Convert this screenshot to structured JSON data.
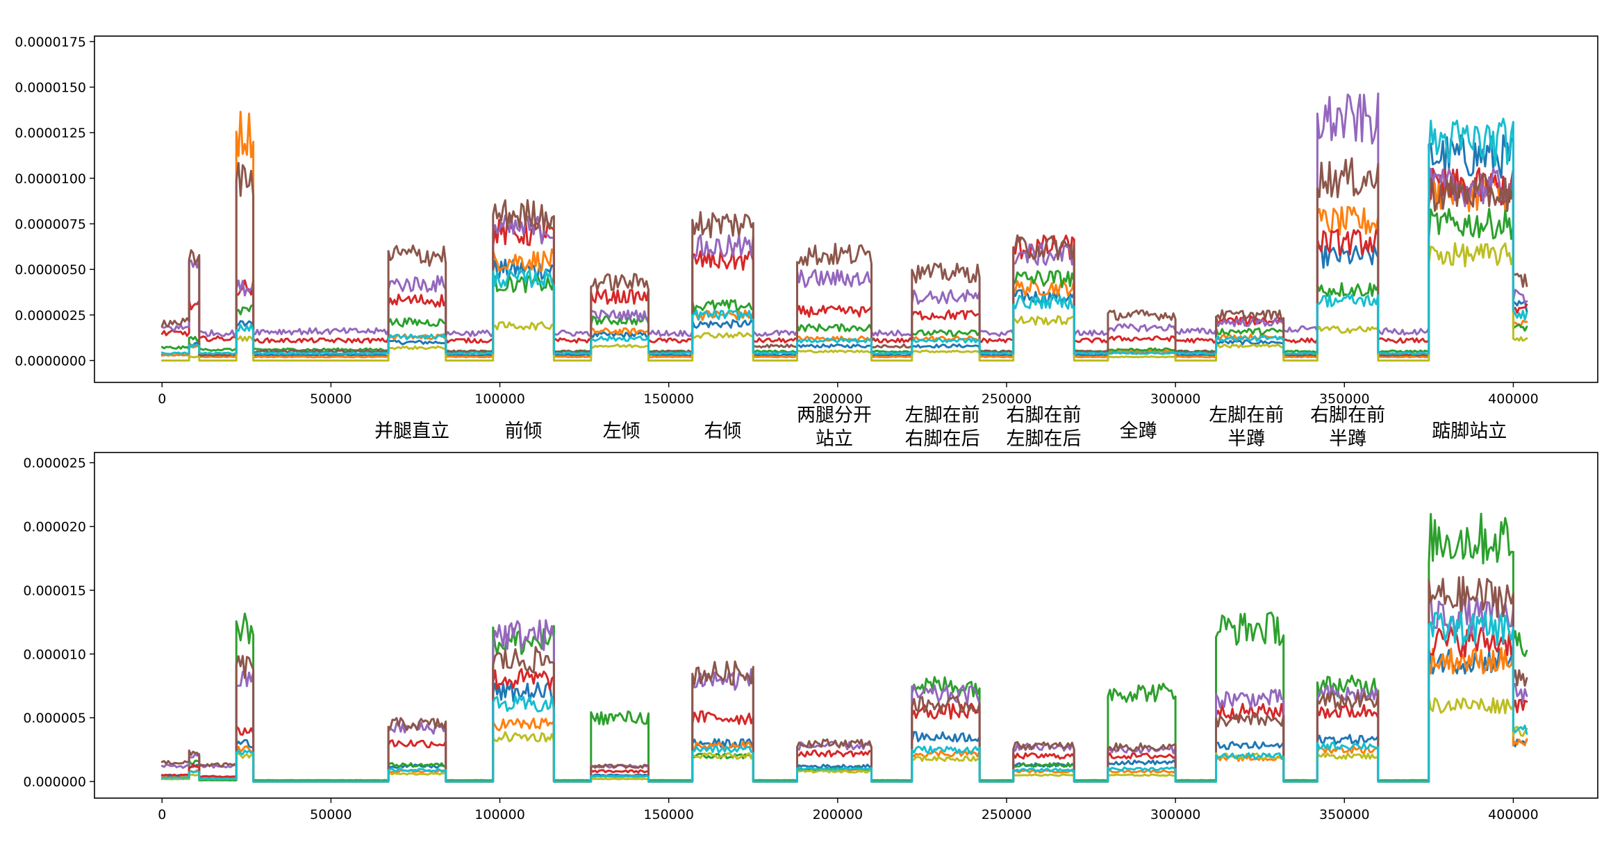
{
  "colors": {
    "blue": "#1f77b4",
    "orange": "#ff7f0e",
    "green": "#2ca02c",
    "red": "#d62728",
    "purple": "#9467bd",
    "brown": "#8c564b",
    "olive": "#bcbd22",
    "cyan": "#17becf"
  },
  "chart_data": [
    {
      "type": "line",
      "grid": false,
      "xlim": [
        -20000,
        425000
      ],
      "ylim": [
        -1.2e-06,
        1.78e-05
      ],
      "xticks": [
        0,
        50000,
        100000,
        150000,
        200000,
        250000,
        300000,
        350000,
        400000
      ],
      "xtick_labels": [
        "0",
        "50000",
        "100000",
        "150000",
        "200000",
        "250000",
        "300000",
        "350000",
        "400000"
      ],
      "yticks": [
        0,
        2.5e-06,
        5e-06,
        7.5e-06,
        1e-05,
        1.25e-05,
        1.5e-05,
        1.75e-05
      ],
      "ytick_labels": [
        "0.0000000",
        "0.0000025",
        "0.0000050",
        "0.0000075",
        "0.0000100",
        "0.0000125",
        "0.0000150",
        "0.0000175"
      ],
      "segments_x": [
        [
          0,
          8000
        ],
        [
          8000,
          11000
        ],
        [
          11000,
          22000
        ],
        [
          22000,
          27000
        ],
        [
          27000,
          67000
        ],
        [
          67000,
          84000
        ],
        [
          84000,
          98000
        ],
        [
          98000,
          116000
        ],
        [
          116000,
          127000
        ],
        [
          127000,
          144000
        ],
        [
          144000,
          157000
        ],
        [
          157000,
          175000
        ],
        [
          175000,
          188000
        ],
        [
          188000,
          210000
        ],
        [
          210000,
          222000
        ],
        [
          222000,
          242000
        ],
        [
          242000,
          252000
        ],
        [
          252000,
          270000
        ],
        [
          270000,
          280000
        ],
        [
          280000,
          300000
        ],
        [
          300000,
          312000
        ],
        [
          312000,
          332000
        ],
        [
          332000,
          342000
        ],
        [
          342000,
          360000
        ],
        [
          360000,
          375000
        ],
        [
          375000,
          400000
        ],
        [
          400000,
          404000
        ]
      ],
      "series": [
        {
          "color_key": "blue",
          "values": [
            3e-07,
            9e-07,
            3e-07,
            2e-06,
            3e-07,
            1e-06,
            3e-07,
            5e-06,
            3e-07,
            1.4e-06,
            3e-07,
            2e-06,
            3e-07,
            8e-07,
            3e-07,
            8e-07,
            3e-07,
            3.5e-06,
            3e-07,
            5e-07,
            3e-07,
            1e-06,
            3e-07,
            5.7e-06,
            3e-07,
            1.12e-05,
            3e-06
          ]
        },
        {
          "color_key": "orange",
          "values": [
            3e-07,
            8e-07,
            2e-07,
            1.25e-05,
            2e-07,
            1.3e-06,
            2e-07,
            5.5e-06,
            2e-07,
            1.6e-06,
            2e-07,
            2.5e-06,
            2e-07,
            1.2e-06,
            2e-07,
            1.2e-06,
            2e-07,
            4e-06,
            2e-07,
            5e-07,
            2e-07,
            1.3e-06,
            2e-07,
            7.6e-06,
            2e-07,
            9.2e-06,
            2e-06
          ]
        },
        {
          "color_key": "green",
          "values": [
            7e-07,
            1.2e-06,
            6e-07,
            2.8e-06,
            6e-07,
            2.1e-06,
            5e-07,
            4.2e-06,
            5e-07,
            2.2e-06,
            5e-07,
            3e-06,
            5e-07,
            1.8e-06,
            5e-07,
            1.5e-06,
            5e-07,
            4.5e-06,
            5e-07,
            6e-07,
            5e-07,
            1.6e-06,
            5e-07,
            3.9e-06,
            5e-07,
            7.5e-06,
            1.8e-06
          ]
        },
        {
          "color_key": "red",
          "values": [
            1.5e-06,
            3e-06,
            1.2e-06,
            4e-06,
            1.1e-06,
            3.3e-06,
            1.1e-06,
            7e-06,
            1.1e-06,
            3.5e-06,
            1.1e-06,
            5.5e-06,
            1.1e-06,
            2.7e-06,
            1.1e-06,
            2.5e-06,
            1.1e-06,
            6.2e-06,
            1.1e-06,
            1.2e-06,
            1.1e-06,
            2.2e-06,
            1.1e-06,
            6.5e-06,
            1.1e-06,
            9.5e-06,
            2.8e-06
          ]
        },
        {
          "color_key": "purple",
          "values": [
            1.8e-06,
            5.5e-06,
            1.5e-06,
            4e-06,
            1.6e-06,
            4.2e-06,
            1.5e-06,
            7.2e-06,
            1.5e-06,
            2.5e-06,
            1.5e-06,
            6.2e-06,
            1.5e-06,
            4.5e-06,
            1.5e-06,
            3.5e-06,
            1.5e-06,
            5.8e-06,
            1.5e-06,
            1.8e-06,
            1.6e-06,
            2.1e-06,
            1.7e-06,
            1.32e-05,
            1.6e-06,
            9.5e-06,
            3.5e-06
          ]
        },
        {
          "color_key": "brown",
          "values": [
            2.1e-06,
            5.5e-06,
            3e-07,
            1e-05,
            5e-07,
            5.8e-06,
            5e-07,
            8e-06,
            5e-07,
            4.3e-06,
            5e-07,
            7.5e-06,
            8e-07,
            5.8e-06,
            8e-07,
            4.8e-06,
            5e-07,
            6.2e-06,
            5e-07,
            2.5e-06,
            5e-07,
            2.5e-06,
            3e-07,
            1e-05,
            3e-07,
            9.2e-06,
            4.4e-06
          ]
        },
        {
          "color_key": "olive",
          "values": [
            0,
            2e-07,
            0,
            1.2e-06,
            0,
            7e-07,
            0,
            1.9e-06,
            0,
            8e-07,
            0,
            1.4e-06,
            0,
            5e-07,
            0,
            5e-07,
            0,
            2.2e-06,
            0,
            2e-07,
            0,
            8e-07,
            0,
            1.7e-06,
            0,
            5.8e-06,
            1.2e-06
          ]
        },
        {
          "color_key": "cyan",
          "values": [
            4e-07,
            8e-07,
            4e-07,
            1.8e-06,
            4e-07,
            1.3e-06,
            4e-07,
            4.5e-06,
            4e-07,
            1.2e-06,
            4e-07,
            2.5e-06,
            4e-07,
            1.1e-06,
            4e-07,
            1.1e-06,
            4e-07,
            3.2e-06,
            4e-07,
            4e-07,
            4e-07,
            1.2e-06,
            4e-07,
            3.3e-06,
            4e-07,
            1.2e-05,
            2.5e-06
          ]
        }
      ]
    },
    {
      "type": "line",
      "grid": false,
      "xlim": [
        -20000,
        425000
      ],
      "ylim": [
        -1.3e-06,
        2.58e-05
      ],
      "xticks": [
        0,
        50000,
        100000,
        150000,
        200000,
        250000,
        300000,
        350000,
        400000
      ],
      "xtick_labels": [
        "0",
        "50000",
        "100000",
        "150000",
        "200000",
        "250000",
        "300000",
        "350000",
        "400000"
      ],
      "yticks": [
        0,
        5e-06,
        1e-05,
        1.5e-05,
        2e-05,
        2.5e-05
      ],
      "ytick_labels": [
        "0.000000",
        "0.000005",
        "0.000010",
        "0.000015",
        "0.000020",
        "0.000025"
      ],
      "segments_x": [
        [
          0,
          8000
        ],
        [
          8000,
          11000
        ],
        [
          11000,
          22000
        ],
        [
          22000,
          27000
        ],
        [
          27000,
          67000
        ],
        [
          67000,
          84000
        ],
        [
          84000,
          98000
        ],
        [
          98000,
          116000
        ],
        [
          116000,
          127000
        ],
        [
          127000,
          144000
        ],
        [
          144000,
          157000
        ],
        [
          157000,
          175000
        ],
        [
          175000,
          188000
        ],
        [
          188000,
          210000
        ],
        [
          210000,
          222000
        ],
        [
          222000,
          242000
        ],
        [
          242000,
          252000
        ],
        [
          252000,
          270000
        ],
        [
          270000,
          280000
        ],
        [
          280000,
          300000
        ],
        [
          300000,
          312000
        ],
        [
          312000,
          332000
        ],
        [
          332000,
          342000
        ],
        [
          342000,
          360000
        ],
        [
          360000,
          375000
        ],
        [
          375000,
          400000
        ],
        [
          400000,
          404000
        ]
      ],
      "series": [
        {
          "color_key": "blue",
          "values": [
            5e-07,
            1.2e-06,
            3e-07,
            3e-06,
            0,
            1.2e-06,
            0,
            7e-06,
            0,
            5e-07,
            0,
            3e-06,
            0,
            1.2e-06,
            0,
            3.5e-06,
            0,
            1.3e-06,
            0,
            1.5e-06,
            0,
            2.8e-06,
            0,
            3.3e-06,
            0,
            9.5e-06,
            3e-06
          ]
        },
        {
          "color_key": "orange",
          "values": [
            4e-07,
            8e-07,
            3e-07,
            2.5e-06,
            0,
            8e-07,
            0,
            4.5e-06,
            0,
            4e-07,
            0,
            2.8e-06,
            0,
            9e-07,
            0,
            2.2e-06,
            0,
            8e-07,
            0,
            8e-07,
            0,
            1.8e-06,
            0,
            2.5e-06,
            0,
            9.5e-06,
            3e-06
          ]
        },
        {
          "color_key": "green",
          "values": [
            2e-07,
            1.5e-06,
            1e-07,
            1.2e-05,
            1e-07,
            1.3e-06,
            1e-07,
            1.1e-05,
            1e-07,
            5e-06,
            1e-07,
            2e-06,
            1e-07,
            1e-06,
            1e-07,
            7.5e-06,
            1e-07,
            1.3e-06,
            1e-07,
            7e-06,
            1e-07,
            1.2e-05,
            1e-07,
            7.5e-06,
            1e-07,
            1.9e-05,
            1.1e-05
          ]
        },
        {
          "color_key": "red",
          "values": [
            5e-07,
            1.2e-06,
            4e-07,
            4e-06,
            0,
            3e-06,
            0,
            8e-06,
            0,
            8e-07,
            0,
            5e-06,
            0,
            2.2e-06,
            0,
            5.5e-06,
            0,
            2e-06,
            0,
            2e-06,
            0,
            5.5e-06,
            0,
            5.5e-06,
            0,
            1.1e-05,
            6e-06
          ]
        },
        {
          "color_key": "purple",
          "values": [
            1.2e-06,
            2e-06,
            1.2e-06,
            8e-06,
            0,
            4.2e-06,
            0,
            1.15e-05,
            0,
            1.2e-06,
            0,
            8e-06,
            0,
            2.8e-06,
            0,
            6.8e-06,
            0,
            2.7e-06,
            0,
            2.5e-06,
            0,
            6.5e-06,
            0,
            6.8e-06,
            0,
            1.3e-05,
            7e-06
          ]
        },
        {
          "color_key": "brown",
          "values": [
            1.5e-06,
            2.2e-06,
            1.3e-06,
            9e-06,
            0,
            4.5e-06,
            0,
            9.5e-06,
            0,
            1.2e-06,
            0,
            8.5e-06,
            0,
            3e-06,
            0,
            6e-06,
            0,
            2.8e-06,
            0,
            2.7e-06,
            0,
            4.8e-06,
            0,
            6.3e-06,
            0,
            1.45e-05,
            8e-06
          ]
        },
        {
          "color_key": "olive",
          "values": [
            2e-07,
            5e-07,
            2e-07,
            2e-06,
            0,
            6e-07,
            0,
            3.5e-06,
            0,
            2e-07,
            0,
            2e-06,
            0,
            8e-07,
            0,
            1.8e-06,
            0,
            5e-07,
            0,
            5e-07,
            0,
            2e-06,
            0,
            2e-06,
            0,
            6e-06,
            4e-06
          ]
        },
        {
          "color_key": "cyan",
          "values": [
            3e-07,
            8e-07,
            2e-07,
            2.2e-06,
            0,
            9e-07,
            0,
            6e-06,
            0,
            4e-07,
            0,
            2.5e-06,
            0,
            1e-06,
            0,
            2.5e-06,
            0,
            9e-07,
            0,
            1e-06,
            0,
            2e-06,
            0,
            2.8e-06,
            0,
            1.2e-05,
            4e-06
          ]
        }
      ]
    }
  ],
  "annotations": [
    {
      "lines": [
        "并腿直立"
      ],
      "x": 74000
    },
    {
      "lines": [
        "前倾"
      ],
      "x": 107000
    },
    {
      "lines": [
        "左倾"
      ],
      "x": 136000
    },
    {
      "lines": [
        "右倾"
      ],
      "x": 166000
    },
    {
      "lines": [
        "两腿分开",
        "站立"
      ],
      "x": 199000
    },
    {
      "lines": [
        "左脚在前",
        "右脚在后"
      ],
      "x": 231000
    },
    {
      "lines": [
        "右脚在前",
        "左脚在后"
      ],
      "x": 261000
    },
    {
      "lines": [
        "全蹲"
      ],
      "x": 289000
    },
    {
      "lines": [
        "左脚在前",
        "半蹲"
      ],
      "x": 321000
    },
    {
      "lines": [
        "右脚在前",
        "半蹲"
      ],
      "x": 351000
    },
    {
      "lines": [
        "踮脚站立"
      ],
      "x": 387000
    }
  ]
}
